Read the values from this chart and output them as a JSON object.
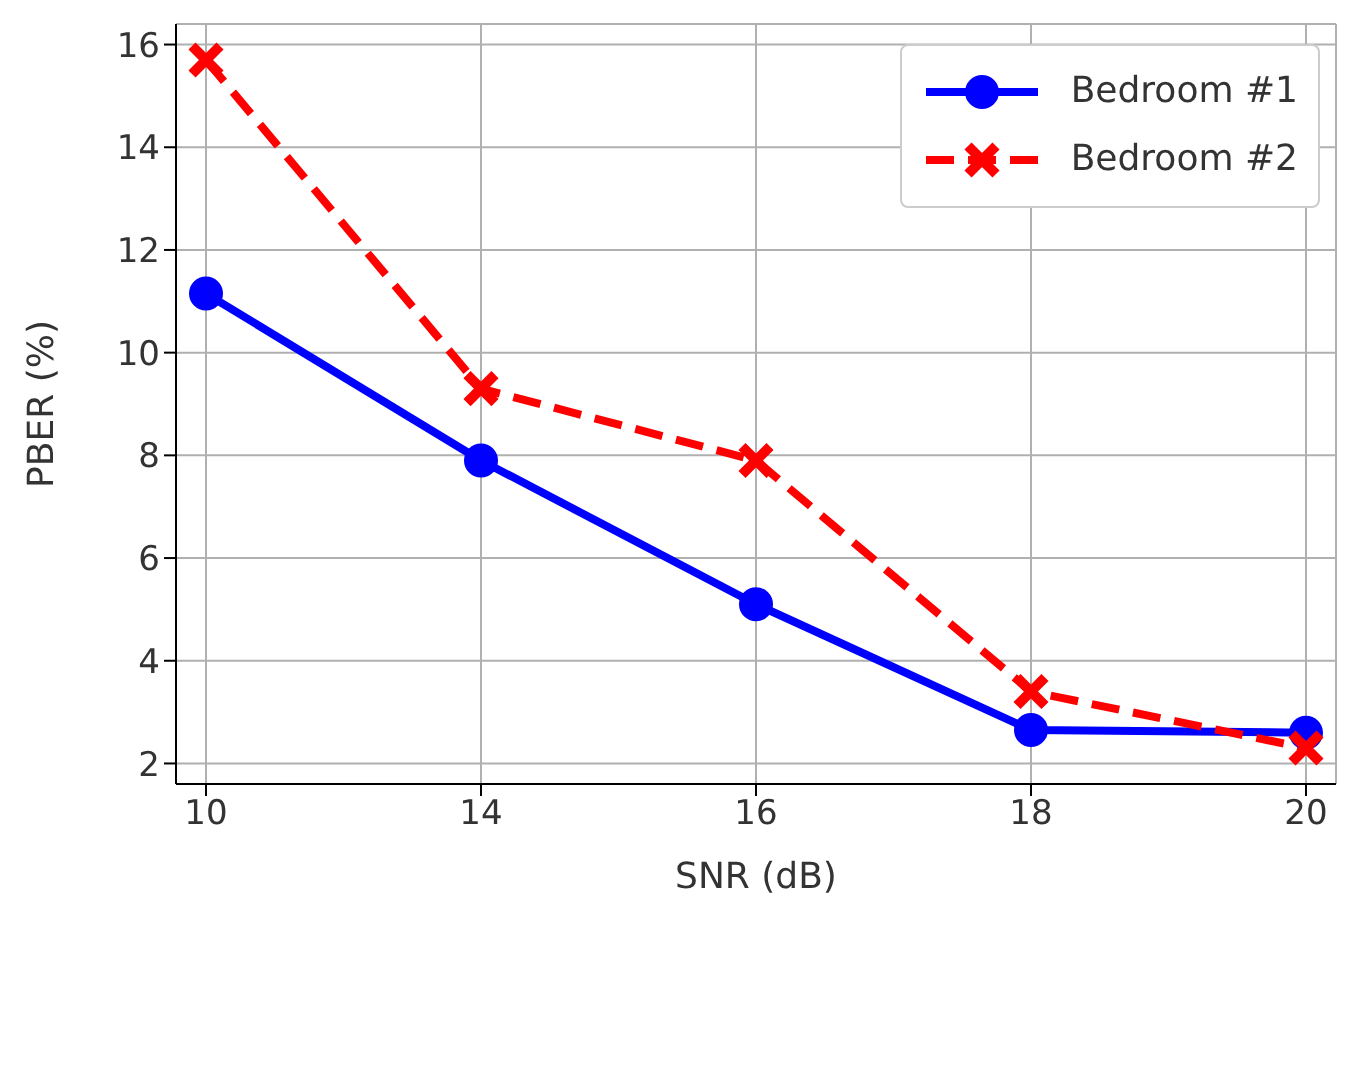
{
  "chart_data": {
    "type": "line",
    "xlabel": "SNR (dB)",
    "ylabel": "PBER (%)",
    "categories": [
      "10",
      "14",
      "16",
      "18",
      "20"
    ],
    "ylim": [
      1.6,
      16.4
    ],
    "yticks": [
      2,
      4,
      6,
      8,
      10,
      12,
      14,
      16
    ],
    "grid": true,
    "legend": "top right",
    "series": [
      {
        "name": "Bedroom #1",
        "color": "#0000ff",
        "marker": "circle",
        "line_style": "solid",
        "values": [
          11.15,
          7.9,
          5.1,
          2.65,
          2.6
        ]
      },
      {
        "name": "Bedroom #2",
        "color": "#ff0000",
        "marker": "cross",
        "line_style": "dashed",
        "values": [
          15.7,
          9.3,
          7.9,
          3.4,
          2.3
        ]
      }
    ]
  }
}
